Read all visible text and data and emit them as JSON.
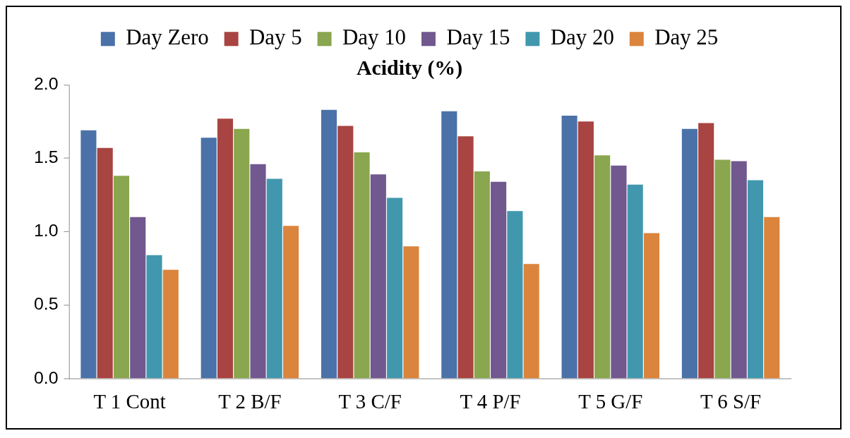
{
  "chart_data": {
    "type": "bar",
    "title": "Acidity (%)",
    "categories": [
      "T 1 Cont",
      "T 2 B/F",
      "T 3 C/F",
      "T 4 P/F",
      "T 5 G/F",
      "T 6 S/F"
    ],
    "series": [
      {
        "name": "Day Zero",
        "color": "#4a72a8",
        "values": [
          1.69,
          1.64,
          1.83,
          1.82,
          1.79,
          1.7
        ]
      },
      {
        "name": "Day 5",
        "color": "#a84441",
        "values": [
          1.57,
          1.77,
          1.72,
          1.65,
          1.75,
          1.74
        ]
      },
      {
        "name": "Day 10",
        "color": "#8aa64e",
        "values": [
          1.38,
          1.7,
          1.54,
          1.41,
          1.52,
          1.49
        ]
      },
      {
        "name": "Day 15",
        "color": "#71588f",
        "values": [
          1.1,
          1.46,
          1.39,
          1.34,
          1.45,
          1.48
        ]
      },
      {
        "name": "Day 20",
        "color": "#4198ae",
        "values": [
          0.84,
          1.36,
          1.23,
          1.14,
          1.32,
          1.35
        ]
      },
      {
        "name": "Day 25",
        "color": "#db843d",
        "values": [
          0.74,
          1.04,
          0.9,
          0.78,
          0.99,
          1.1
        ]
      }
    ],
    "ylim": [
      0,
      2
    ],
    "yticks": [
      {
        "value": 0,
        "label": "0.0"
      },
      {
        "value": 0.5,
        "label": "0.5"
      },
      {
        "value": 1,
        "label": "1.0"
      },
      {
        "value": 1.5,
        "label": "1.5"
      },
      {
        "value": 2,
        "label": "2.0"
      }
    ],
    "grid": false,
    "legend": "top"
  }
}
